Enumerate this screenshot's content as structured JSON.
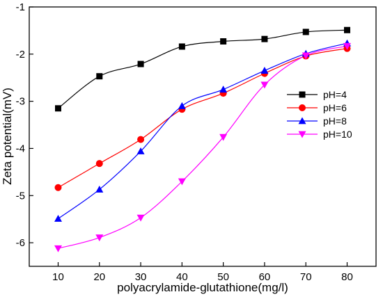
{
  "chart_data": {
    "type": "line",
    "title": "",
    "xlabel": "polyacrylamide-glutathione(mg/l)",
    "ylabel": "Zeta potential(mV)",
    "x": [
      10,
      20,
      30,
      40,
      50,
      60,
      70,
      80
    ],
    "xlim": [
      3,
      87
    ],
    "ylim": [
      -6.5,
      -1
    ],
    "xticks": [
      "10",
      "20",
      "30",
      "40",
      "50",
      "60",
      "70",
      "80"
    ],
    "yticks": [
      "-1",
      "-2",
      "-3",
      "-4",
      "-5",
      "-6"
    ],
    "grid": false,
    "legend_position": "right",
    "series": [
      {
        "name": "pH=4",
        "color": "#000000",
        "marker": "square",
        "values": [
          -3.15,
          -2.47,
          -2.21,
          -1.84,
          -1.73,
          -1.68,
          -1.53,
          -1.49
        ]
      },
      {
        "name": "pH=6",
        "color": "#ff0000",
        "marker": "circle",
        "values": [
          -4.83,
          -4.32,
          -3.81,
          -3.17,
          -2.83,
          -2.41,
          -2.04,
          -1.88
        ]
      },
      {
        "name": "pH=8",
        "color": "#0000ff",
        "marker": "triangle-up",
        "values": [
          -5.49,
          -4.87,
          -4.06,
          -3.1,
          -2.75,
          -2.35,
          -1.99,
          -1.77
        ]
      },
      {
        "name": "pH=10",
        "color": "#ff00ff",
        "marker": "triangle-down",
        "values": [
          -6.12,
          -5.89,
          -5.47,
          -4.7,
          -3.76,
          -2.65,
          -2.03,
          -1.83
        ]
      }
    ]
  }
}
